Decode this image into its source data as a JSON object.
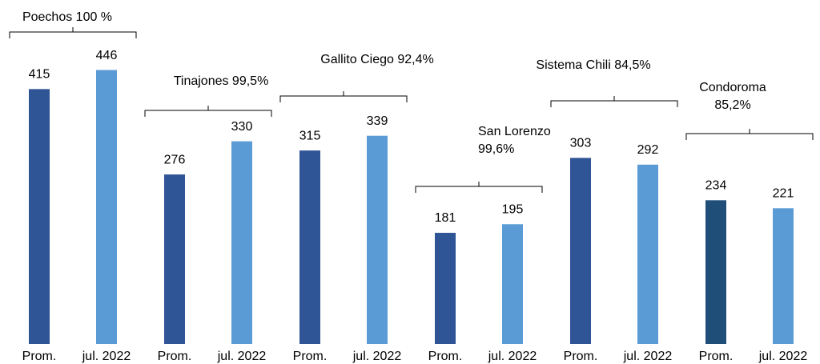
{
  "chart_data": {
    "type": "bar",
    "categories": [
      [
        "Poechos 100 %"
      ],
      [
        "Tinajones 99,5%"
      ],
      [
        "Gallito Ciego 92,4%"
      ],
      [
        "San Lorenzo",
        "99,6%"
      ],
      [
        "Sistema Chili 84,5%"
      ],
      [
        "Condoroma",
        "85,2%"
      ]
    ],
    "series": [
      {
        "name": "Prom.",
        "color": "#2f5597",
        "colors": [
          "#2f5597",
          "#2f5597",
          "#2f5597",
          "#2f5597",
          "#2f5597",
          "#1f4e79"
        ],
        "values": [
          415,
          276,
          315,
          181,
          303,
          234
        ]
      },
      {
        "name": "jul. 2022",
        "color": "#5b9bd5",
        "values": [
          446,
          330,
          339,
          195,
          292,
          221
        ]
      }
    ],
    "ylim": [
      0,
      560
    ]
  }
}
